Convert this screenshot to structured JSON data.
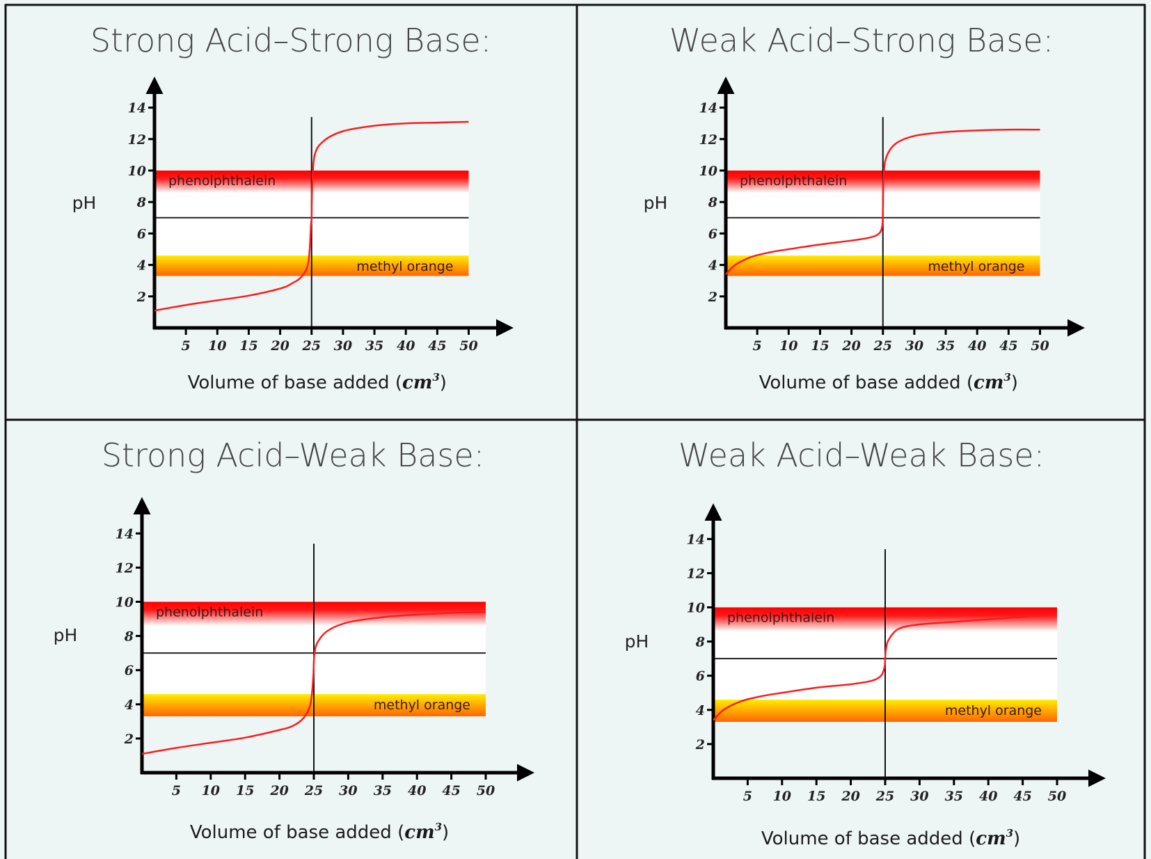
{
  "colors": {
    "background": "#eef6f5",
    "border": "#111111",
    "curve": "#ff1a1a",
    "phenolphthalein_band": "#ff0000",
    "methyl_orange_top": "#ffee00",
    "methyl_orange_bottom": "#ff6600",
    "title_text": "#454545"
  },
  "chart_data": [
    {
      "type": "line",
      "title": "Strong Acid–Strong Base:",
      "xlabel": "Volume of base added",
      "xlabel_unit": "cm",
      "xlabel_unit_sup": "3",
      "ylabel": "pH",
      "xlim": [
        0,
        50
      ],
      "ylim": [
        0,
        14
      ],
      "xticks": [
        5,
        10,
        15,
        20,
        25,
        30,
        35,
        40,
        45,
        50
      ],
      "yticks": [
        2,
        4,
        6,
        8,
        10,
        12,
        14
      ],
      "equivalence_volume": 25,
      "neutral_ph": 7,
      "indicator_bands": [
        {
          "name": "phenolphthalein",
          "ph_range": [
            8.6,
            10
          ]
        },
        {
          "name": "methyl orange",
          "ph_range": [
            3.3,
            4.6
          ]
        }
      ],
      "series": [
        {
          "name": "titration curve",
          "x": [
            0,
            5,
            10,
            15,
            20,
            22,
            23.5,
            24.5,
            24.9,
            25,
            25.1,
            25.5,
            27,
            30,
            35,
            40,
            45,
            50
          ],
          "y": [
            1.1,
            1.45,
            1.75,
            2.05,
            2.5,
            2.85,
            3.3,
            4.2,
            6.5,
            7.0,
            9.0,
            11.0,
            11.9,
            12.5,
            12.85,
            13.0,
            13.05,
            13.1
          ]
        }
      ]
    },
    {
      "type": "line",
      "title": "Weak Acid–Strong Base:",
      "xlabel": "Volume of base added",
      "xlabel_unit": "cm",
      "xlabel_unit_sup": "3",
      "ylabel": "pH",
      "xlim": [
        0,
        50
      ],
      "ylim": [
        0,
        14
      ],
      "xticks": [
        5,
        10,
        15,
        20,
        25,
        30,
        35,
        40,
        45,
        50
      ],
      "yticks": [
        2,
        4,
        6,
        8,
        10,
        12,
        14
      ],
      "equivalence_volume": 25,
      "neutral_ph": 7,
      "indicator_bands": [
        {
          "name": "phenolphthalein",
          "ph_range": [
            8.6,
            10
          ]
        },
        {
          "name": "methyl orange",
          "ph_range": [
            3.3,
            4.6
          ]
        }
      ],
      "series": [
        {
          "name": "titration curve",
          "x": [
            0,
            1.5,
            4,
            7,
            10,
            15,
            20,
            23,
            24.4,
            24.9,
            25,
            25.1,
            25.5,
            27,
            30,
            35,
            40,
            45,
            50
          ],
          "y": [
            3.4,
            4.0,
            4.5,
            4.8,
            5.0,
            5.3,
            5.55,
            5.75,
            6.0,
            6.5,
            7.5,
            9.5,
            10.8,
            11.7,
            12.2,
            12.45,
            12.55,
            12.6,
            12.6
          ]
        }
      ]
    },
    {
      "type": "line",
      "title": "Strong Acid–Weak Base:",
      "xlabel": "Volume of base added",
      "xlabel_unit": "cm",
      "xlabel_unit_sup": "3",
      "ylabel": "pH",
      "xlim": [
        0,
        50
      ],
      "ylim": [
        0,
        14
      ],
      "xticks": [
        5,
        10,
        15,
        20,
        25,
        30,
        35,
        40,
        45,
        50
      ],
      "yticks": [
        2,
        4,
        6,
        8,
        10,
        12,
        14
      ],
      "equivalence_volume": 25,
      "neutral_ph": 7,
      "indicator_bands": [
        {
          "name": "phenolphthalein",
          "ph_range": [
            8.6,
            10
          ]
        },
        {
          "name": "methyl orange",
          "ph_range": [
            3.3,
            4.6
          ]
        }
      ],
      "series": [
        {
          "name": "titration curve",
          "x": [
            0,
            5,
            10,
            15,
            20,
            22,
            23.5,
            24.5,
            24.9,
            25,
            25.1,
            25.5,
            27,
            30,
            35,
            40,
            45,
            50
          ],
          "y": [
            1.1,
            1.45,
            1.75,
            2.05,
            2.5,
            2.75,
            3.2,
            4.0,
            5.5,
            6.5,
            7.0,
            7.6,
            8.3,
            8.8,
            9.1,
            9.25,
            9.35,
            9.4
          ]
        }
      ]
    },
    {
      "type": "line",
      "title": "Weak Acid–Weak Base:",
      "xlabel": "Volume of base added",
      "xlabel_unit": "cm",
      "xlabel_unit_sup": "3",
      "ylabel": "pH",
      "xlim": [
        0,
        50
      ],
      "ylim": [
        0,
        14
      ],
      "xticks": [
        5,
        10,
        15,
        20,
        25,
        30,
        35,
        40,
        45,
        50
      ],
      "yticks": [
        2,
        4,
        6,
        8,
        10,
        12,
        14
      ],
      "equivalence_volume": 25,
      "neutral_ph": 7,
      "indicator_bands": [
        {
          "name": "phenolphthalein",
          "ph_range": [
            8.6,
            10
          ]
        },
        {
          "name": "methyl orange",
          "ph_range": [
            3.3,
            4.6
          ]
        }
      ],
      "series": [
        {
          "name": "titration curve",
          "x": [
            0,
            1.5,
            4,
            7,
            10,
            15,
            20,
            23,
            24.4,
            24.9,
            25,
            25.1,
            25.5,
            27,
            30,
            35,
            40,
            45,
            50
          ],
          "y": [
            3.4,
            4.0,
            4.5,
            4.8,
            5.0,
            5.3,
            5.5,
            5.7,
            6.0,
            6.5,
            7.0,
            7.5,
            8.1,
            8.75,
            9.0,
            9.15,
            9.3,
            9.45,
            9.6
          ]
        }
      ]
    }
  ]
}
